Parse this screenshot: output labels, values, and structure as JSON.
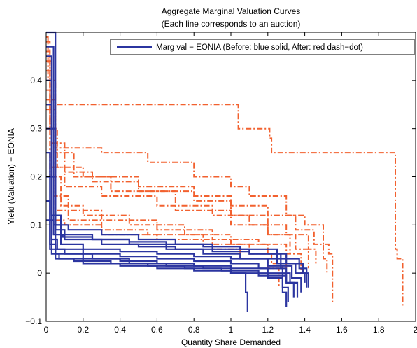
{
  "chart_data": {
    "type": "line",
    "title": "Aggregate Marginal Valuation Curves",
    "subtitle": "(Each line corresponds to an auction)",
    "xlabel": "Quantity Share Demanded",
    "ylabel": "Yield (Valuation) − EONIA",
    "xlim": [
      0,
      2
    ],
    "ylim": [
      -0.1,
      0.5
    ],
    "x_ticks": [
      0,
      0.2,
      0.4,
      0.6,
      0.8,
      1,
      1.2,
      1.4,
      1.6,
      1.8,
      2
    ],
    "x_tick_labels": [
      "0",
      "0.2",
      "0.4",
      "0.6",
      "0.8",
      "1",
      "1.2",
      "1.4",
      "1.6",
      "1.8",
      "2"
    ],
    "y_ticks": [
      -0.1,
      0,
      0.1,
      0.2,
      0.3,
      0.4
    ],
    "y_tick_labels": [
      "−0.1",
      "0",
      "0.1",
      "0.2",
      "0.3",
      "0.4"
    ],
    "grid": false,
    "legend": {
      "placement": "top-right",
      "entries": [
        "Marg val − EONIA (Before: blue solid, After: red dash−dot)"
      ]
    },
    "colors": {
      "before": "#2b35a0",
      "after": "#f2612f"
    },
    "series": [
      {
        "group": "after",
        "x": [
          0,
          0.01,
          0.03,
          0.05,
          1.04,
          1.21,
          1.22,
          1.89,
          1.9,
          1.93
        ],
        "y": [
          0.49,
          0.4,
          0.36,
          0.35,
          0.3,
          0.28,
          0.25,
          0.05,
          0.03,
          -0.07
        ]
      },
      {
        "group": "after",
        "x": [
          0,
          0.02,
          0.05,
          0.3,
          0.55,
          0.8,
          1.0,
          1.1,
          1.3,
          1.4,
          1.5,
          1.53,
          1.55
        ],
        "y": [
          0.48,
          0.3,
          0.26,
          0.25,
          0.23,
          0.2,
          0.18,
          0.16,
          0.12,
          0.1,
          0.06,
          0.04,
          -0.06
        ]
      },
      {
        "group": "after",
        "x": [
          0,
          0.02,
          0.06,
          0.2,
          0.5,
          0.8,
          1.0,
          1.2,
          1.35,
          1.45,
          1.5,
          1.52
        ],
        "y": [
          0.46,
          0.3,
          0.22,
          0.2,
          0.18,
          0.16,
          0.14,
          0.12,
          0.09,
          0.06,
          0.03,
          0.0
        ]
      },
      {
        "group": "after",
        "x": [
          0,
          0.03,
          0.1,
          0.3,
          0.6,
          0.9,
          1.1,
          1.3,
          1.42,
          1.46
        ],
        "y": [
          0.44,
          0.22,
          0.18,
          0.16,
          0.14,
          0.12,
          0.1,
          0.08,
          0.05,
          0.02
        ]
      },
      {
        "group": "after",
        "x": [
          0,
          0.05,
          0.15,
          0.35,
          0.7,
          1.0,
          1.2,
          1.35,
          1.42
        ],
        "y": [
          0.4,
          0.25,
          0.2,
          0.17,
          0.13,
          0.1,
          0.08,
          0.05,
          0.01
        ]
      },
      {
        "group": "after",
        "x": [
          0,
          0.04,
          0.12,
          0.3,
          0.6,
          0.9,
          1.15,
          1.3,
          1.38
        ],
        "y": [
          0.38,
          0.16,
          0.13,
          0.11,
          0.09,
          0.07,
          0.06,
          0.04,
          0.0
        ]
      },
      {
        "group": "after",
        "x": [
          0,
          0.03,
          0.1,
          0.25,
          0.5,
          0.8,
          1.0,
          1.2,
          1.32
        ],
        "y": [
          0.42,
          0.27,
          0.21,
          0.19,
          0.17,
          0.15,
          0.12,
          0.08,
          0.04
        ]
      },
      {
        "group": "after",
        "x": [
          0,
          0.02,
          0.08,
          0.2,
          0.45,
          0.75,
          1.0,
          1.2,
          1.3
        ],
        "y": [
          0.36,
          0.2,
          0.14,
          0.12,
          0.1,
          0.08,
          0.06,
          0.04,
          0.01
        ]
      },
      {
        "group": "after",
        "x": [
          0,
          0.05,
          0.12,
          0.3,
          0.55,
          0.85,
          1.1,
          1.22,
          1.28
        ],
        "y": [
          0.34,
          0.13,
          0.11,
          0.09,
          0.08,
          0.06,
          0.04,
          0.02,
          -0.01
        ]
      },
      {
        "group": "after",
        "x": [
          0,
          0.04,
          0.1,
          0.3,
          0.6,
          0.9,
          1.05,
          1.2,
          1.26
        ],
        "y": [
          0.3,
          0.11,
          0.1,
          0.08,
          0.07,
          0.05,
          0.03,
          0.01,
          -0.03
        ]
      },
      {
        "group": "before",
        "x": [
          0,
          0.05,
          0.1,
          0.3,
          0.5,
          0.7,
          0.9,
          1.1,
          1.3,
          1.39,
          1.42
        ],
        "y": [
          0.5,
          0.09,
          0.07,
          0.06,
          0.055,
          0.05,
          0.045,
          0.04,
          0.02,
          0.0,
          -0.03
        ]
      },
      {
        "group": "before",
        "x": [
          0,
          0.04,
          0.08,
          0.2,
          0.4,
          0.6,
          0.8,
          1.0,
          1.2,
          1.33,
          1.38
        ],
        "y": [
          0.47,
          0.1,
          0.06,
          0.05,
          0.045,
          0.04,
          0.035,
          0.03,
          0.015,
          -0.01,
          -0.04
        ]
      },
      {
        "group": "before",
        "x": [
          0,
          0.03,
          0.06,
          0.2,
          0.4,
          0.6,
          0.8,
          1.0,
          1.15,
          1.28,
          1.3
        ],
        "y": [
          0.45,
          0.07,
          0.05,
          0.04,
          0.035,
          0.03,
          0.025,
          0.02,
          0.01,
          -0.04,
          -0.07
        ]
      },
      {
        "group": "before",
        "x": [
          0,
          0.03,
          0.08,
          0.25,
          0.45,
          0.65,
          0.85,
          1.05,
          1.25,
          1.35,
          1.4
        ],
        "y": [
          0.4,
          0.12,
          0.08,
          0.07,
          0.06,
          0.05,
          0.04,
          0.03,
          0.02,
          0.0,
          -0.02
        ]
      },
      {
        "group": "before",
        "x": [
          0,
          0.05,
          0.1,
          0.25,
          0.45,
          0.65,
          0.85,
          1.0,
          1.08,
          1.09
        ],
        "y": [
          0.3,
          0.05,
          0.04,
          0.03,
          0.02,
          0.015,
          0.01,
          0.0,
          -0.04,
          -0.08
        ]
      },
      {
        "group": "before",
        "x": [
          0,
          0.02,
          0.05,
          0.2,
          0.4,
          0.6,
          0.8,
          1.0,
          1.2,
          1.32,
          1.36
        ],
        "y": [
          0.25,
          0.06,
          0.04,
          0.03,
          0.025,
          0.02,
          0.015,
          0.01,
          0.0,
          -0.02,
          -0.05
        ]
      },
      {
        "group": "before",
        "x": [
          0,
          0.05,
          0.12,
          0.3,
          0.5,
          0.7,
          0.9,
          1.1,
          1.27,
          1.3
        ],
        "y": [
          0.2,
          0.1,
          0.09,
          0.08,
          0.07,
          0.06,
          0.05,
          0.04,
          0.01,
          -0.02
        ]
      },
      {
        "group": "before",
        "x": [
          0,
          0.03,
          0.07,
          0.2,
          0.4,
          0.6,
          0.8,
          1.0,
          1.2,
          1.28,
          1.31
        ],
        "y": [
          0.35,
          0.04,
          0.03,
          0.02,
          0.015,
          0.01,
          0.005,
          0.0,
          -0.01,
          -0.03,
          -0.06
        ]
      },
      {
        "group": "before",
        "x": [
          0,
          0.02,
          0.05,
          0.15,
          0.35,
          0.55,
          0.75,
          0.95,
          1.15,
          1.3,
          1.34
        ],
        "y": [
          0.15,
          0.05,
          0.03,
          0.025,
          0.02,
          0.015,
          0.01,
          0.005,
          -0.005,
          -0.02,
          -0.05
        ]
      },
      {
        "group": "before",
        "x": [
          0,
          0.04,
          0.09,
          0.25,
          0.45,
          0.65,
          0.85,
          1.05,
          1.25,
          1.37,
          1.41
        ],
        "y": [
          0.11,
          0.08,
          0.075,
          0.07,
          0.065,
          0.06,
          0.055,
          0.05,
          0.03,
          0.01,
          -0.03
        ]
      }
    ]
  }
}
